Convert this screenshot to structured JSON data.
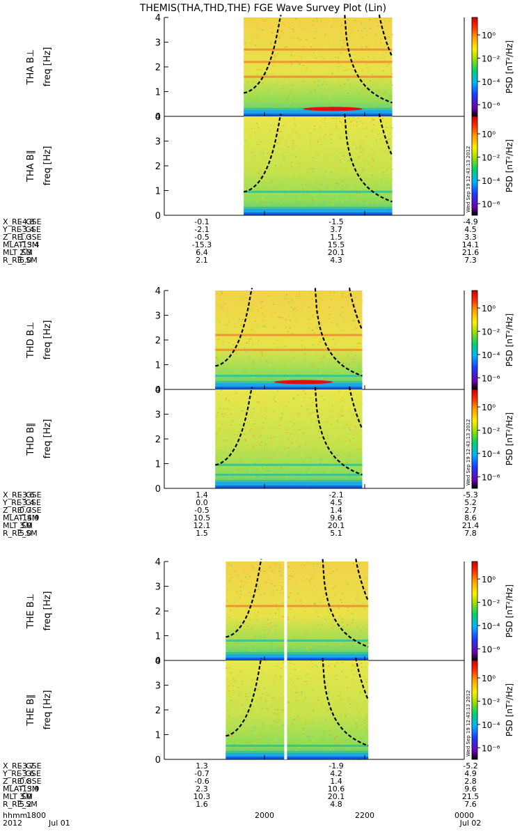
{
  "chart_data": {
    "type": "heatmap",
    "title": "THEMIS(THA,THD,THE) FGE Wave Survey Plot (Lin)",
    "xaxis": {
      "ticks": [
        "1800",
        "2000",
        "2200",
        "0000"
      ],
      "label": "hhmm",
      "year": "2012",
      "dates": [
        "Jul 01",
        "Jul 02"
      ]
    },
    "colorbar": {
      "label": "PSD [nT²/Hz]",
      "ticks": [
        "10⁰",
        "10⁻²",
        "10⁻⁴",
        "10⁻⁶"
      ],
      "log_range": [
        -7,
        1.5
      ]
    },
    "yaxis": {
      "label": "freq [Hz]",
      "ticks": [
        "0",
        "1",
        "2",
        "3",
        "4"
      ],
      "range": [
        0,
        4
      ]
    },
    "timestamp": "Wed Sep 19 12:43:13 2012",
    "groups": [
      {
        "probe": "THA",
        "data_span": [
          0.265,
          0.76
        ],
        "panels": [
          {
            "label": "THA B⊥",
            "bands": [
              0.3,
              1.6,
              2.2,
              2.7
            ],
            "strong_line": 0.3
          },
          {
            "label": "THA B∥",
            "bands": [
              0.3,
              0.95
            ],
            "strong_line": null
          }
        ],
        "ephemeris": [
          {
            "name": "X_RE_GSE",
            "values": [
              "-4.8",
              "-0.1",
              "-1.5",
              "-4.9"
            ]
          },
          {
            "name": "Y_RE_GSE",
            "values": [
              "-3.4",
              "-2.1",
              "3.7",
              "4.5"
            ]
          },
          {
            "name": "Z_RE_GSE",
            "values": [
              "1.3",
              "-0.5",
              "1.5",
              "3.3"
            ]
          },
          {
            "name": "MLAT_SM",
            "values": [
              "-13.4",
              "-15.3",
              "15.5",
              "14.1"
            ]
          },
          {
            "name": "MLT_SM",
            "values": [
              "2.3",
              "6.4",
              "20.1",
              "21.6"
            ]
          },
          {
            "name": "R_RE_SM",
            "values": [
              "6.0",
              "2.1",
              "4.3",
              "7.3"
            ]
          }
        ]
      },
      {
        "probe": "THD",
        "data_span": [
          0.17,
          0.66
        ],
        "panels": [
          {
            "label": "THD B⊥",
            "bands": [
              0.3,
              0.55,
              1.6,
              2.2
            ],
            "strong_line": 0.3
          },
          {
            "label": "THD B∥",
            "bands": [
              0.3,
              0.55,
              0.95
            ],
            "strong_line": null
          }
        ],
        "ephemeris": [
          {
            "name": "X_RE_GSE",
            "values": [
              "-3.6",
              "1.4",
              "-2.1",
              "-5.3"
            ]
          },
          {
            "name": "Y_RE_GSE",
            "values": [
              "-3.4",
              "0.0",
              "4.5",
              "5.2"
            ]
          },
          {
            "name": "Z_RE_GSE",
            "values": [
              "0.7",
              "-0.5",
              "1.4",
              "2.7"
            ]
          },
          {
            "name": "MLAT_SM",
            "values": [
              "-14.9",
              "10.5",
              "9.6",
              "8.6"
            ]
          },
          {
            "name": "MLT_SM",
            "values": [
              "3.0",
              "12.1",
              "20.1",
              "21.4"
            ]
          },
          {
            "name": "R_RE_SM",
            "values": [
              "5.0",
              "1.5",
              "5.1",
              "7.8"
            ]
          }
        ]
      },
      {
        "probe": "THE",
        "data_span": [
          0.205,
          0.68
        ],
        "panels": [
          {
            "label": "THE B⊥",
            "bands": [
              0.3,
              0.8,
              2.2
            ],
            "strong_line": null
          },
          {
            "label": "THE B∥",
            "bands": [
              0.3,
              0.55
            ],
            "strong_line": null
          }
        ],
        "ephemeris": [
          {
            "name": "X_RE_GSE",
            "values": [
              "-3.7",
              "1.3",
              "-1.9",
              "-5.2"
            ]
          },
          {
            "name": "Y_RE_GSE",
            "values": [
              "-3.6",
              "-0.7",
              "4.2",
              "4.9"
            ]
          },
          {
            "name": "Z_RE_GSE",
            "values": [
              "0.8",
              "-0.6",
              "1.4",
              "2.8"
            ]
          },
          {
            "name": "MLAT_SM",
            "values": [
              "-13.9",
              "2.3",
              "10.6",
              "9.6"
            ]
          },
          {
            "name": "MLT_SM",
            "values": [
              "3.0",
              "10.3",
              "20.1",
              "21.5"
            ]
          },
          {
            "name": "R_RE_SM",
            "values": [
              "5.2",
              "1.6",
              "4.8",
              "7.6"
            ]
          }
        ]
      }
    ]
  }
}
